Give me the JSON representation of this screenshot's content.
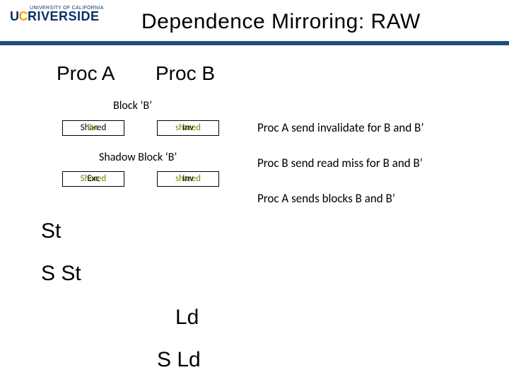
{
  "logo": {
    "small_text": "UNIVERSITY OF CALIFORNIA",
    "u": "U",
    "c": "C",
    "riverside": "RIVERSIDE"
  },
  "title": "Dependence Mirroring: RAW",
  "proc_a": "Proc A",
  "proc_b": "Proc B",
  "block_label_1": "Block ‘B’",
  "block_label_2": "Shadow Block ‘B’",
  "cells": {
    "a1": {
      "back": "Shared",
      "front": "Exc",
      "back_color": "#000000",
      "front_color": "#808000"
    },
    "b1": {
      "back": "shared",
      "front": "Inv",
      "back_color": "#808000",
      "front_color": "#000000"
    },
    "a2": {
      "back": "Shared",
      "front": "Exc",
      "back_color": "#808000",
      "front_color": "#000000"
    },
    "b2": {
      "back": "shared",
      "front": "Inv",
      "back_color": "#808000",
      "front_color": "#000000"
    }
  },
  "notes": {
    "n1": "Proc A send  invalidate for B and B’",
    "n2": "Proc B send read miss for B and B’",
    "n3": "Proc A sends blocks B and B’"
  },
  "ops": {
    "st": "St",
    "sst": "S St",
    "ld": "Ld",
    "sld": "S Ld"
  },
  "colors": {
    "rule": "#1f4e79",
    "background": "#ffffff",
    "text": "#000000",
    "olive": "#808000"
  }
}
